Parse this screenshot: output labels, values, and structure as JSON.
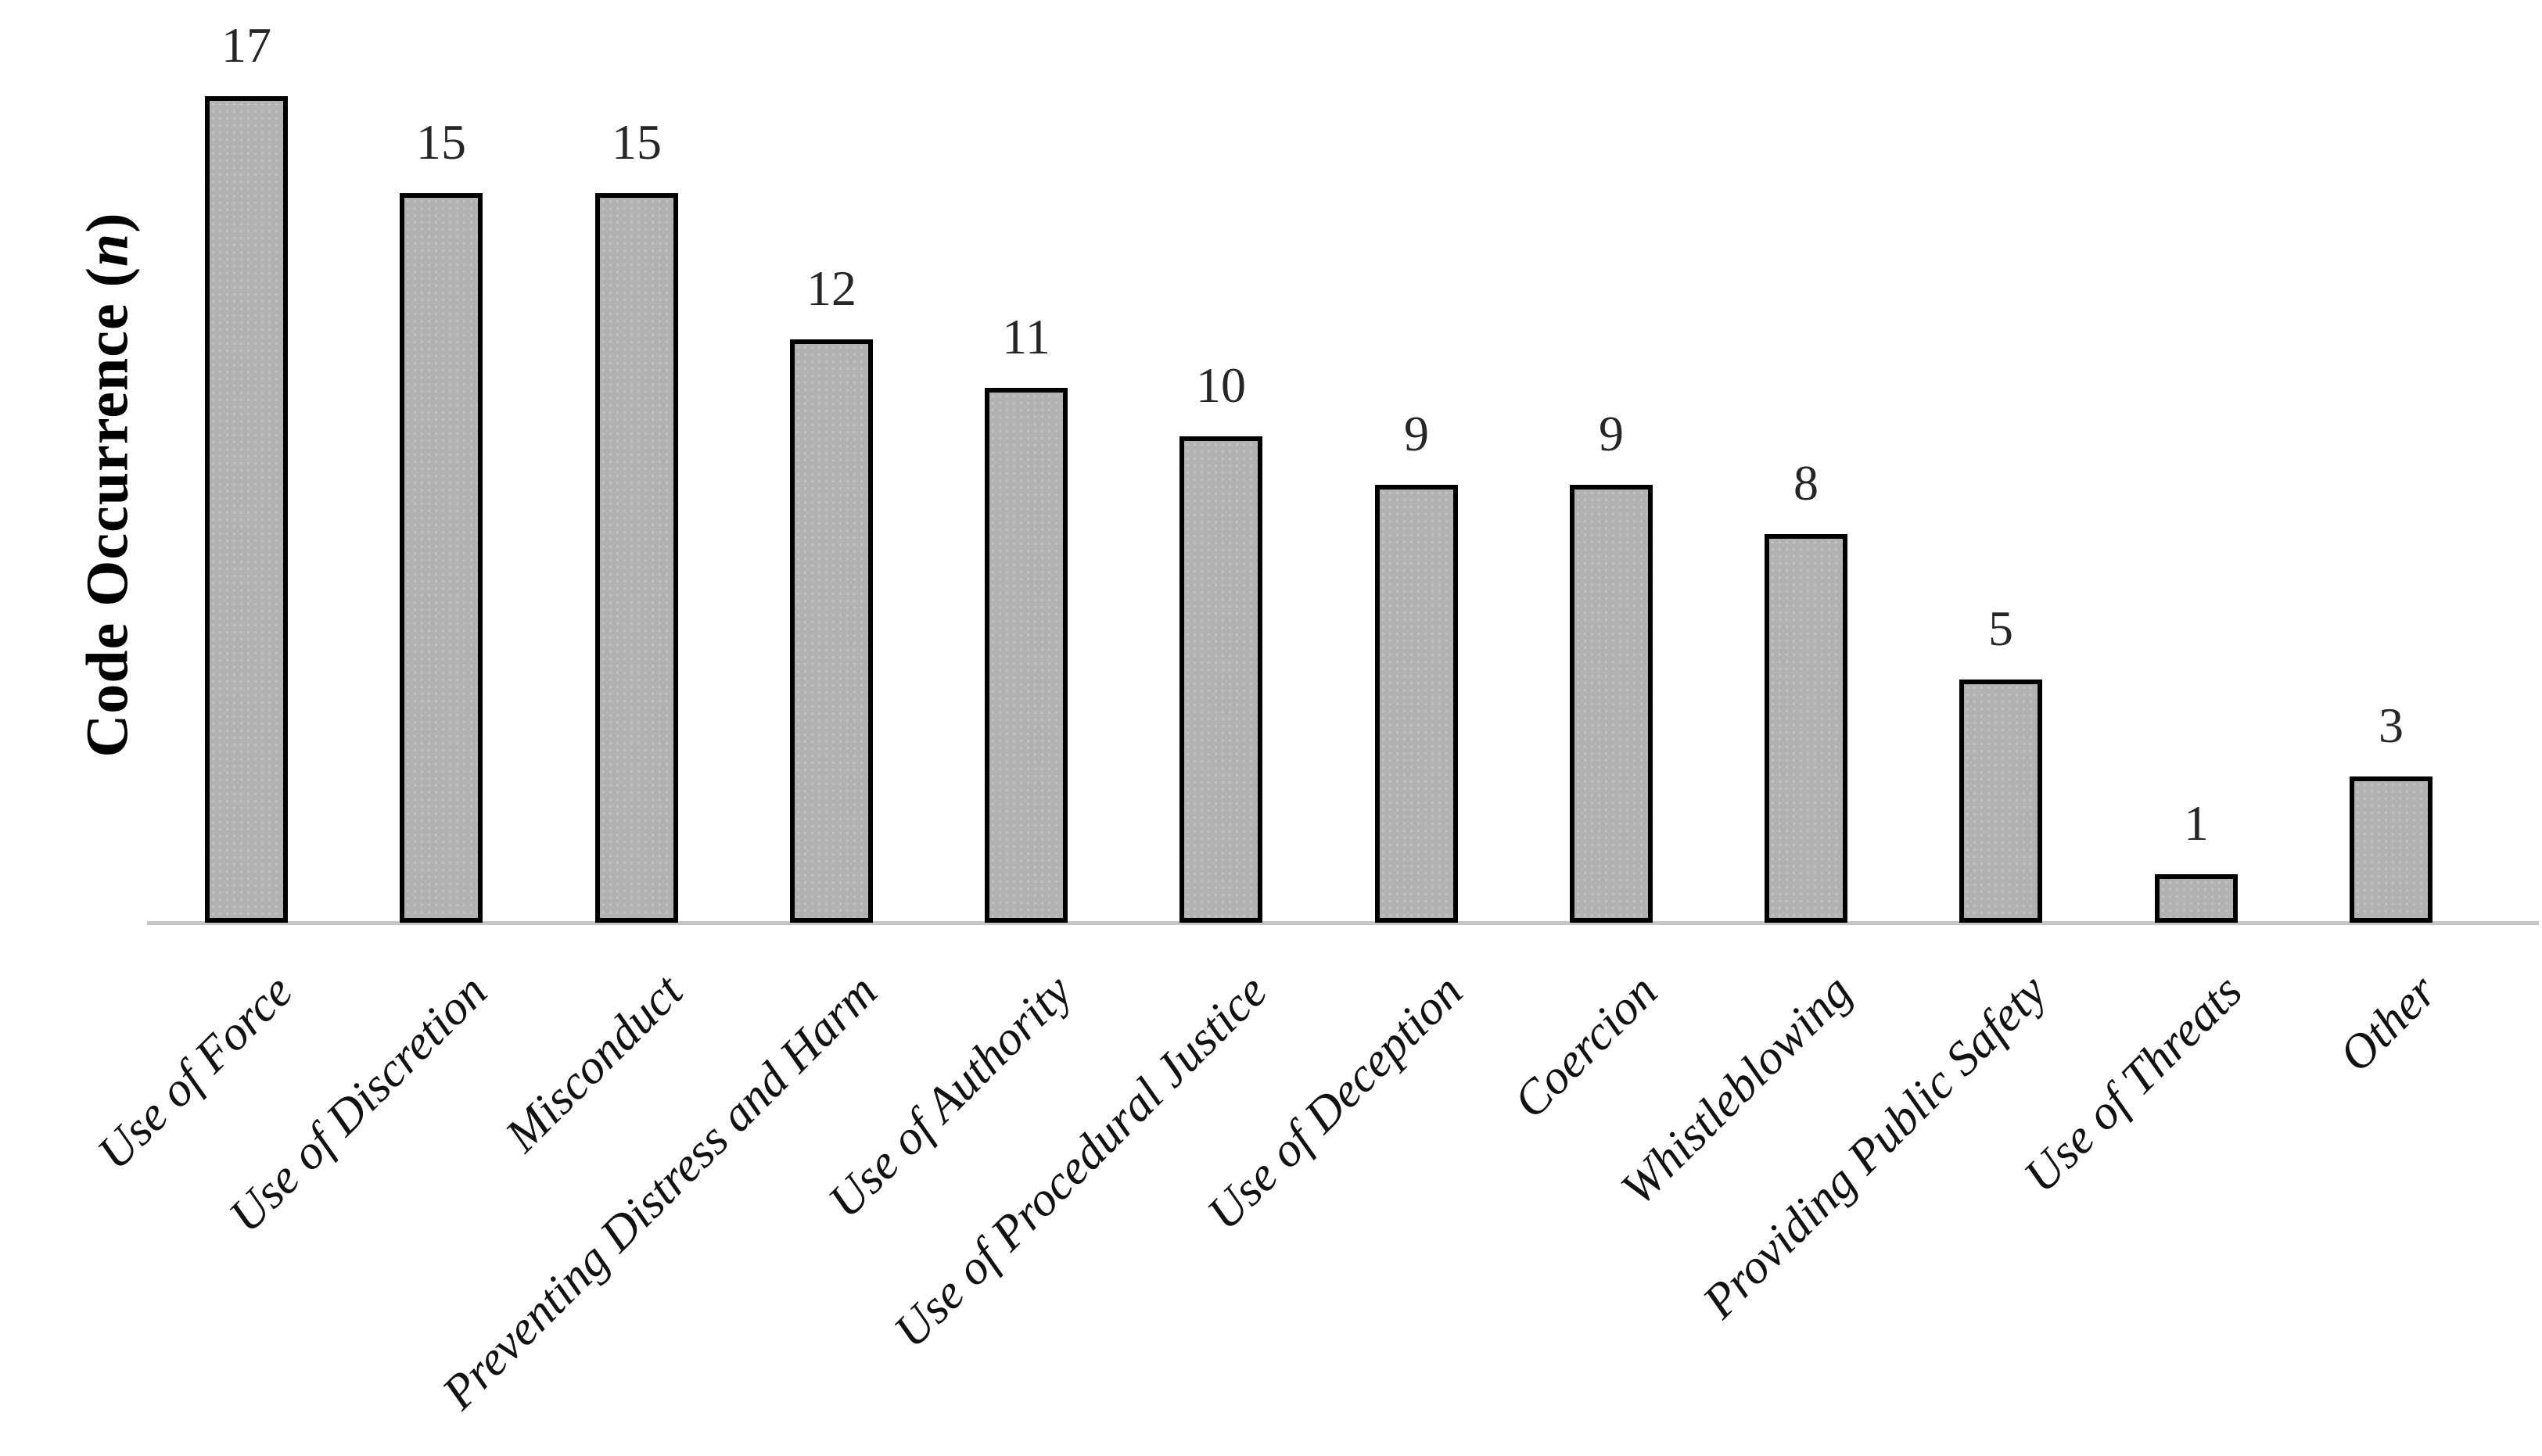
{
  "chart_data": {
    "type": "bar",
    "title": "",
    "categories": [
      "Use of Force",
      "Use of Discretion",
      "Misconduct",
      "Preventing Distress and Harm",
      "Use of Authority",
      "Use of Procedural Justice",
      "Use of Deception",
      "Coercion",
      "Whistleblowing",
      "Providing Public Safety",
      "Use of Threats",
      "Other"
    ],
    "values": [
      17,
      15,
      15,
      12,
      11,
      10,
      9,
      9,
      8,
      5,
      1,
      3
    ],
    "value_labels": [
      "17",
      "15",
      "15",
      "12",
      "11",
      "10",
      "9",
      "9",
      "8",
      "5",
      "1",
      "3"
    ],
    "xlabel": "",
    "ylabel": "Code Occurrence (n)",
    "ylabel_parts": {
      "prefix": "Code Occurrence (",
      "variable": "n",
      "suffix": ")"
    },
    "ylim": [
      0,
      17
    ],
    "grid": false,
    "legend": null,
    "y_axis_ticks_shown": false,
    "value_labels_shown": true,
    "category_label_rotation_deg": 45,
    "colors": {
      "bar_fill": "#b2b2b2",
      "bar_dot_pattern": "#c1c1c1",
      "bar_border": "#000000",
      "axis_line": "#c6c6c6",
      "value_label_text": "#262626",
      "category_label_text": "#111111",
      "ylabel_text": "#000000",
      "background": "#ffffff"
    }
  }
}
